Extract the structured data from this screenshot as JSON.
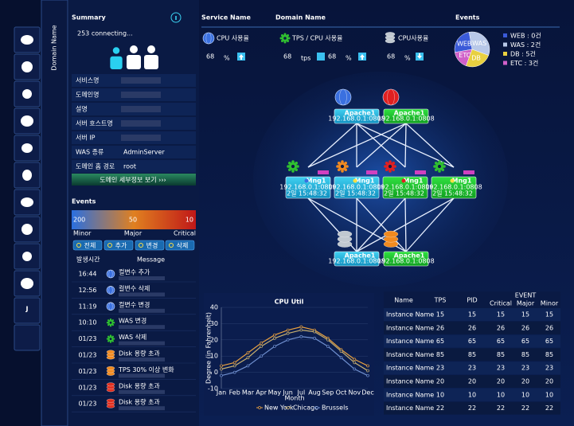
{
  "sidebar": {
    "tab": "Domain Name",
    "last_icon": "J"
  },
  "summary": {
    "title": "Summary",
    "connecting": "253 connecting...",
    "fields": [
      {
        "label": "서비스명"
      },
      {
        "label": "도메인명"
      },
      {
        "label": "설명"
      },
      {
        "label": "서버 호스트명"
      },
      {
        "label": "서버 IP"
      },
      {
        "label": "WAS 종류",
        "value": "AdminServer"
      },
      {
        "label": "도메인 홈 경로",
        "value": "root"
      }
    ],
    "button": "도메인 세부정보 보기 ›››"
  },
  "events": {
    "title": "Events",
    "scale": [
      "200",
      "50",
      "10"
    ],
    "levels": [
      "Minor",
      "Major",
      "Critical"
    ],
    "buttons": [
      "전체",
      "추가",
      "변경",
      "삭제"
    ],
    "headers": [
      "발생시간",
      "Message"
    ],
    "rows": [
      {
        "time": "16:44",
        "message": "컬변수 추가"
      },
      {
        "time": "12:56",
        "message": "컬변수 삭제"
      },
      {
        "time": "11:19",
        "message": "컬변수 변경"
      },
      {
        "time": "10:10",
        "message": "WAS 변경"
      },
      {
        "time": "01/23",
        "message": "WAS 삭제"
      },
      {
        "time": "01/23",
        "message": "Disk 용량 초과"
      },
      {
        "time": "01/23",
        "message": "TPS 30% 이상 변화"
      },
      {
        "time": "01/23",
        "message": "Disk 용량 초과"
      },
      {
        "time": "01/23",
        "message": "Disk 용량 초과"
      }
    ]
  },
  "header": {
    "service": "Service Name",
    "domain": "Domain Name",
    "events": "Events"
  },
  "metrics": [
    {
      "label": "CPU 사용율",
      "value": "68",
      "unit": "%"
    },
    {
      "label": "TPS / CPU 사용율",
      "value": "68",
      "unit": "tps",
      "value2": "68",
      "unit2": "%"
    },
    {
      "label": "CPU사용율",
      "value": "68",
      "unit": "%"
    }
  ],
  "event_summary": {
    "pie_labels": [
      "WAS",
      "WEB",
      "ETC",
      "DB"
    ],
    "legend": [
      "WEB : 0건",
      "WAS : 2건",
      "DB :   5건",
      "ETC :  3건"
    ]
  },
  "topology": {
    "nodes": [
      {
        "name": "Apache1",
        "addr": "192.168.0.1:0808"
      },
      {
        "name": "Apache1",
        "addr": "192.168.0.1:0808"
      },
      {
        "name": "Mng1",
        "addr": "192.168.0.1:0808",
        "time": "2일 15:48:32"
      },
      {
        "name": "Mng1",
        "addr": "192.168.0.1:0808",
        "time": "2일 15:48:32"
      },
      {
        "name": "Mng1",
        "addr": "192.168.0.1:0808",
        "time": "2일 15:48:32"
      },
      {
        "name": "Mng1",
        "addr": "192.168.0.1:0808",
        "time": "2일 15:48:32"
      },
      {
        "name": "Apache1",
        "addr": "192.168.0.1:0808"
      },
      {
        "name": "Apache1",
        "addr": "192.168.0.1:0808"
      }
    ]
  },
  "chart_data": {
    "type": "line",
    "title": "CPU Util",
    "x_label": "Month",
    "y_label": "Degree (in Fahrenheit)",
    "categories": [
      "Jan",
      "Feb",
      "Mar",
      "Apr",
      "May",
      "Jun",
      "Jul",
      "Aug",
      "Sep",
      "Oct",
      "Nov",
      "Dec"
    ],
    "series": [
      {
        "name": "New York",
        "color": "#e8a040",
        "values": [
          4,
          6,
          12,
          18,
          23,
          26,
          28,
          26,
          21,
          14,
          8,
          4
        ]
      },
      {
        "name": "Chicago",
        "color": "#c8b070",
        "values": [
          2,
          4,
          9,
          16,
          21,
          24,
          26,
          25,
          20,
          13,
          6,
          1
        ]
      },
      {
        "name": "Brussels",
        "color": "#7090d0",
        "values": [
          -2,
          0,
          4,
          10,
          16,
          20,
          22,
          21,
          16,
          9,
          2,
          -2
        ]
      }
    ],
    "ylim": [
      -10,
      40
    ],
    "yticks": [
      -10,
      0,
      10,
      20,
      30,
      40
    ],
    "grid": true
  },
  "instance_table": {
    "headers": [
      "Name",
      "TPS",
      "PID",
      "EVENT"
    ],
    "event_headers": [
      "Critical",
      "Major",
      "Minor"
    ],
    "rows": [
      [
        "Instance Name",
        "15",
        "15",
        "15",
        "15",
        "15"
      ],
      [
        "Instance Name",
        "26",
        "26",
        "26",
        "26",
        "26"
      ],
      [
        "Instance Name",
        "65",
        "65",
        "65",
        "65",
        "65"
      ],
      [
        "Instance Name",
        "85",
        "85",
        "85",
        "85",
        "85"
      ],
      [
        "Instance Name",
        "23",
        "23",
        "23",
        "23",
        "23"
      ],
      [
        "Instance Name",
        "20",
        "20",
        "20",
        "20",
        "20"
      ],
      [
        "Instance Name",
        "10",
        "10",
        "10",
        "10",
        "10"
      ],
      [
        "Instance Name",
        "22",
        "22",
        "22",
        "22",
        "22"
      ]
    ]
  }
}
